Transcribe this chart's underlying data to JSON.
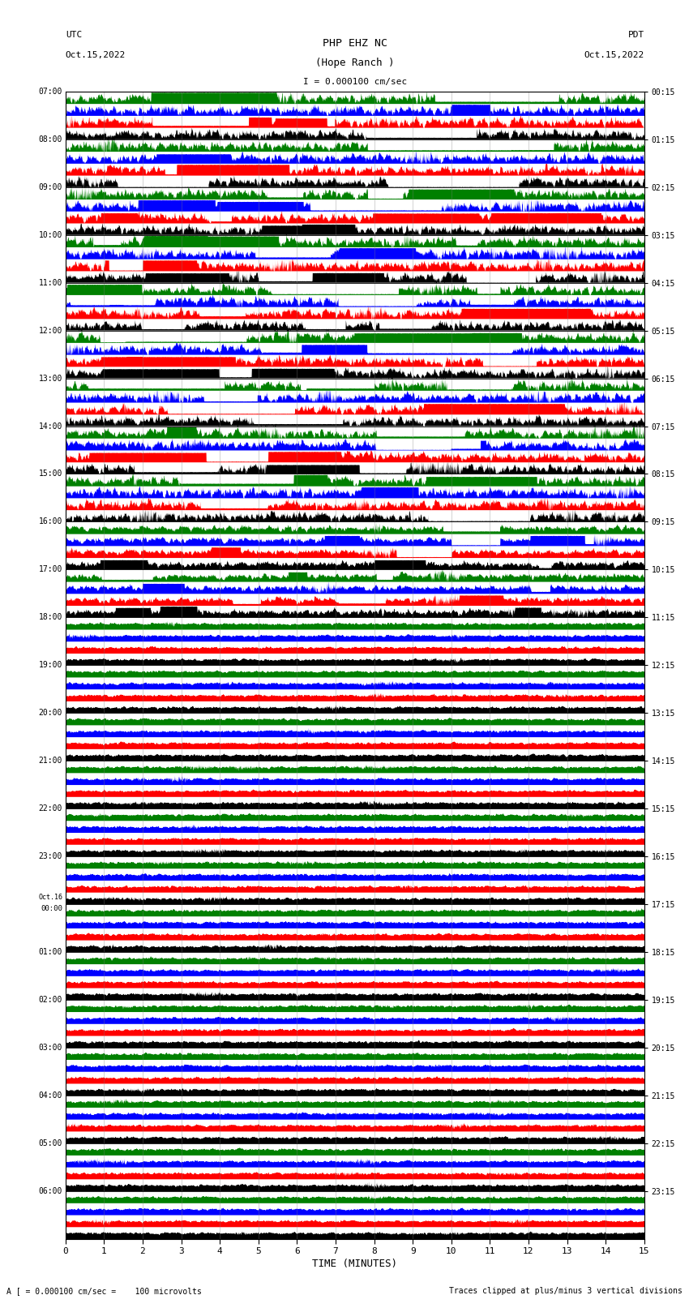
{
  "title_line1": "PHP EHZ NC",
  "title_line2": "(Hope Ranch )",
  "scale_text": "I = 0.000100 cm/sec",
  "utc_label": "UTC",
  "utc_date": "Oct.15,2022",
  "pdt_label": "PDT",
  "pdt_date": "Oct.15,2022",
  "left_times": [
    "07:00",
    "08:00",
    "09:00",
    "10:00",
    "11:00",
    "12:00",
    "13:00",
    "14:00",
    "15:00",
    "16:00",
    "17:00",
    "18:00",
    "19:00",
    "20:00",
    "21:00",
    "22:00",
    "23:00",
    "Oct.16\n00:00",
    "01:00",
    "02:00",
    "03:00",
    "04:00",
    "05:00",
    "06:00"
  ],
  "right_times": [
    "00:15",
    "01:15",
    "02:15",
    "03:15",
    "04:15",
    "05:15",
    "06:15",
    "07:15",
    "08:15",
    "09:15",
    "10:15",
    "11:15",
    "12:15",
    "13:15",
    "14:15",
    "15:15",
    "16:15",
    "17:15",
    "18:15",
    "19:15",
    "20:15",
    "21:15",
    "22:15",
    "23:15"
  ],
  "xlabel": "TIME (MINUTES)",
  "bottom_left": "A [ = 0.000100 cm/sec =    100 microvolts",
  "bottom_right": "Traces clipped at plus/minus 3 vertical divisions",
  "num_rows": 24,
  "minutes": 15,
  "trace_colors": [
    "black",
    "red",
    "blue",
    "green"
  ],
  "background": "white",
  "fig_width": 8.5,
  "fig_height": 16.13
}
